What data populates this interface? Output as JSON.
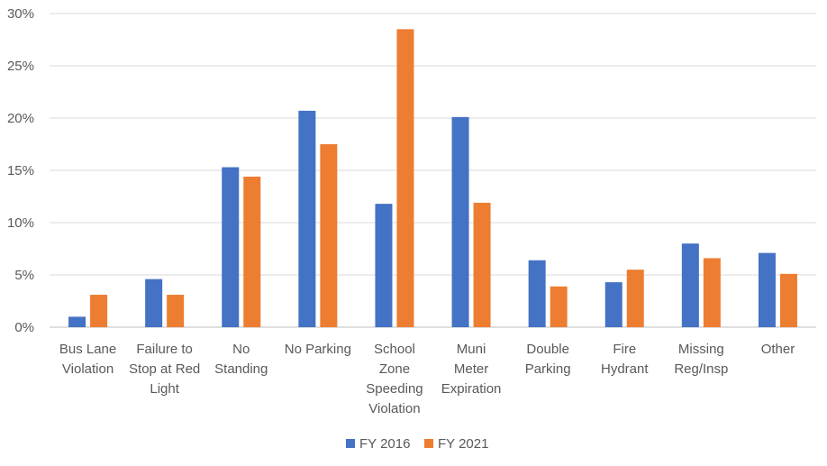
{
  "chart_data": {
    "type": "bar",
    "title": "",
    "xlabel": "",
    "ylabel": "",
    "ylim": [
      0,
      30
    ],
    "y_ticks": [
      "0%",
      "5%",
      "10%",
      "15%",
      "20%",
      "25%",
      "30%"
    ],
    "grid": true,
    "legend_position": "bottom",
    "categories": [
      [
        "Bus Lane",
        "Violation"
      ],
      [
        "Failure to",
        "Stop at Red",
        "Light"
      ],
      [
        "No",
        "Standing"
      ],
      [
        "No Parking"
      ],
      [
        "School",
        "Zone",
        "Speeding",
        "Violation"
      ],
      [
        "Muni",
        "Meter",
        "Expiration"
      ],
      [
        "Double",
        "Parking"
      ],
      [
        "Fire",
        "Hydrant"
      ],
      [
        "Missing",
        "Reg/Insp"
      ],
      [
        "Other"
      ]
    ],
    "series": [
      {
        "name": "FY 2016",
        "color": "#4472c4",
        "values": [
          1.0,
          4.6,
          15.3,
          20.7,
          11.8,
          20.1,
          6.4,
          4.3,
          8.0,
          7.1
        ]
      },
      {
        "name": "FY 2021",
        "color": "#ed7d31",
        "values": [
          3.1,
          3.1,
          14.4,
          17.5,
          28.5,
          11.9,
          3.9,
          5.5,
          6.6,
          5.1
        ]
      }
    ]
  }
}
